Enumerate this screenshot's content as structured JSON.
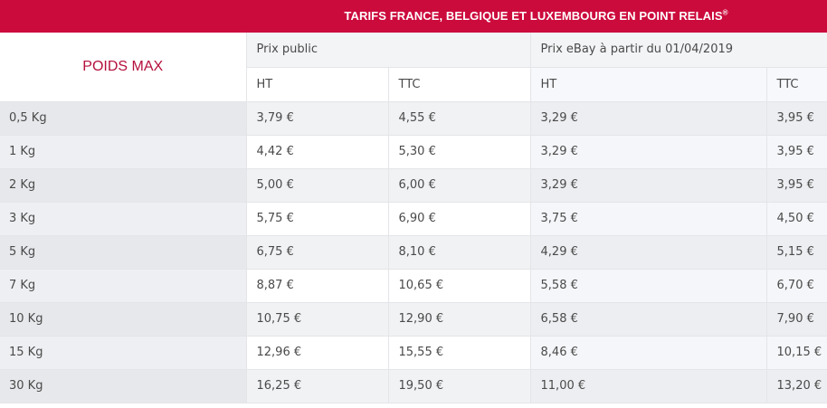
{
  "banner": {
    "title": "TARIFS FRANCE, BELGIQUE ET LUXEMBOURG EN POINT RELAIS",
    "registered_mark": "®",
    "color": "#cc0b3d"
  },
  "table": {
    "weight_header": "POIDS MAX",
    "group_public": "Prix public",
    "group_ebay": "Prix eBay à partir du 01/04/2019",
    "col_ht": "HT",
    "col_ttc": "TTC",
    "rows": [
      {
        "weight": "0,5 Kg",
        "pub_ht": "3,79 €",
        "pub_ttc": "4,55 €",
        "ebay_ht": "3,29 €",
        "ebay_ttc": "3,95 €"
      },
      {
        "weight": "1 Kg",
        "pub_ht": "4,42 €",
        "pub_ttc": "5,30 €",
        "ebay_ht": "3,29 €",
        "ebay_ttc": "3,95 €"
      },
      {
        "weight": "2 Kg",
        "pub_ht": "5,00 €",
        "pub_ttc": "6,00 €",
        "ebay_ht": "3,29 €",
        "ebay_ttc": "3,95 €"
      },
      {
        "weight": "3 Kg",
        "pub_ht": "5,75 €",
        "pub_ttc": "6,90 €",
        "ebay_ht": "3,75 €",
        "ebay_ttc": "4,50 €"
      },
      {
        "weight": "5 Kg",
        "pub_ht": "6,75 €",
        "pub_ttc": "8,10 €",
        "ebay_ht": "4,29 €",
        "ebay_ttc": "5,15 €"
      },
      {
        "weight": "7 Kg",
        "pub_ht": "8,87 €",
        "pub_ttc": "10,65 €",
        "ebay_ht": "5,58 €",
        "ebay_ttc": "6,70 €"
      },
      {
        "weight": "10 Kg",
        "pub_ht": "10,75 €",
        "pub_ttc": "12,90 €",
        "ebay_ht": "6,58 €",
        "ebay_ttc": "7,90 €"
      },
      {
        "weight": "15 Kg",
        "pub_ht": "12,96 €",
        "pub_ttc": "15,55 €",
        "ebay_ht": "8,46 €",
        "ebay_ttc": "10,15 €"
      },
      {
        "weight": "30 Kg",
        "pub_ht": "16,25 €",
        "pub_ttc": "19,50 €",
        "ebay_ht": "11,00 €",
        "ebay_ttc": "13,20 €"
      }
    ]
  }
}
